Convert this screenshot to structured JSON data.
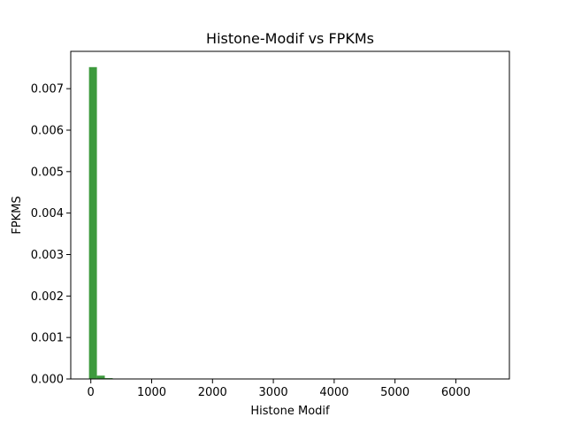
{
  "chart_data": {
    "type": "bar",
    "title": "Histone-Modif vs FPKMs",
    "xlabel": "Histone Modif",
    "ylabel": "FPKMS",
    "xlim": [
      -330,
      6880
    ],
    "ylim": [
      0,
      0.0079
    ],
    "x_ticks": [
      0,
      1000,
      2000,
      3000,
      4000,
      5000,
      6000
    ],
    "x_tick_labels": [
      "0",
      "1000",
      "2000",
      "3000",
      "4000",
      "5000",
      "6000"
    ],
    "y_ticks": [
      0.0,
      0.001,
      0.002,
      0.003,
      0.004,
      0.005,
      0.006,
      0.007
    ],
    "y_tick_labels": [
      "0.000",
      "0.001",
      "0.002",
      "0.003",
      "0.004",
      "0.005",
      "0.006",
      "0.007"
    ],
    "bar_color": "#3d9a3d",
    "grid": false,
    "bins": [
      {
        "x0": -30,
        "x1": 100,
        "value": 0.00752
      },
      {
        "x0": 100,
        "x1": 230,
        "value": 8e-05
      },
      {
        "x0": 230,
        "x1": 360,
        "value": 2e-05
      }
    ]
  }
}
